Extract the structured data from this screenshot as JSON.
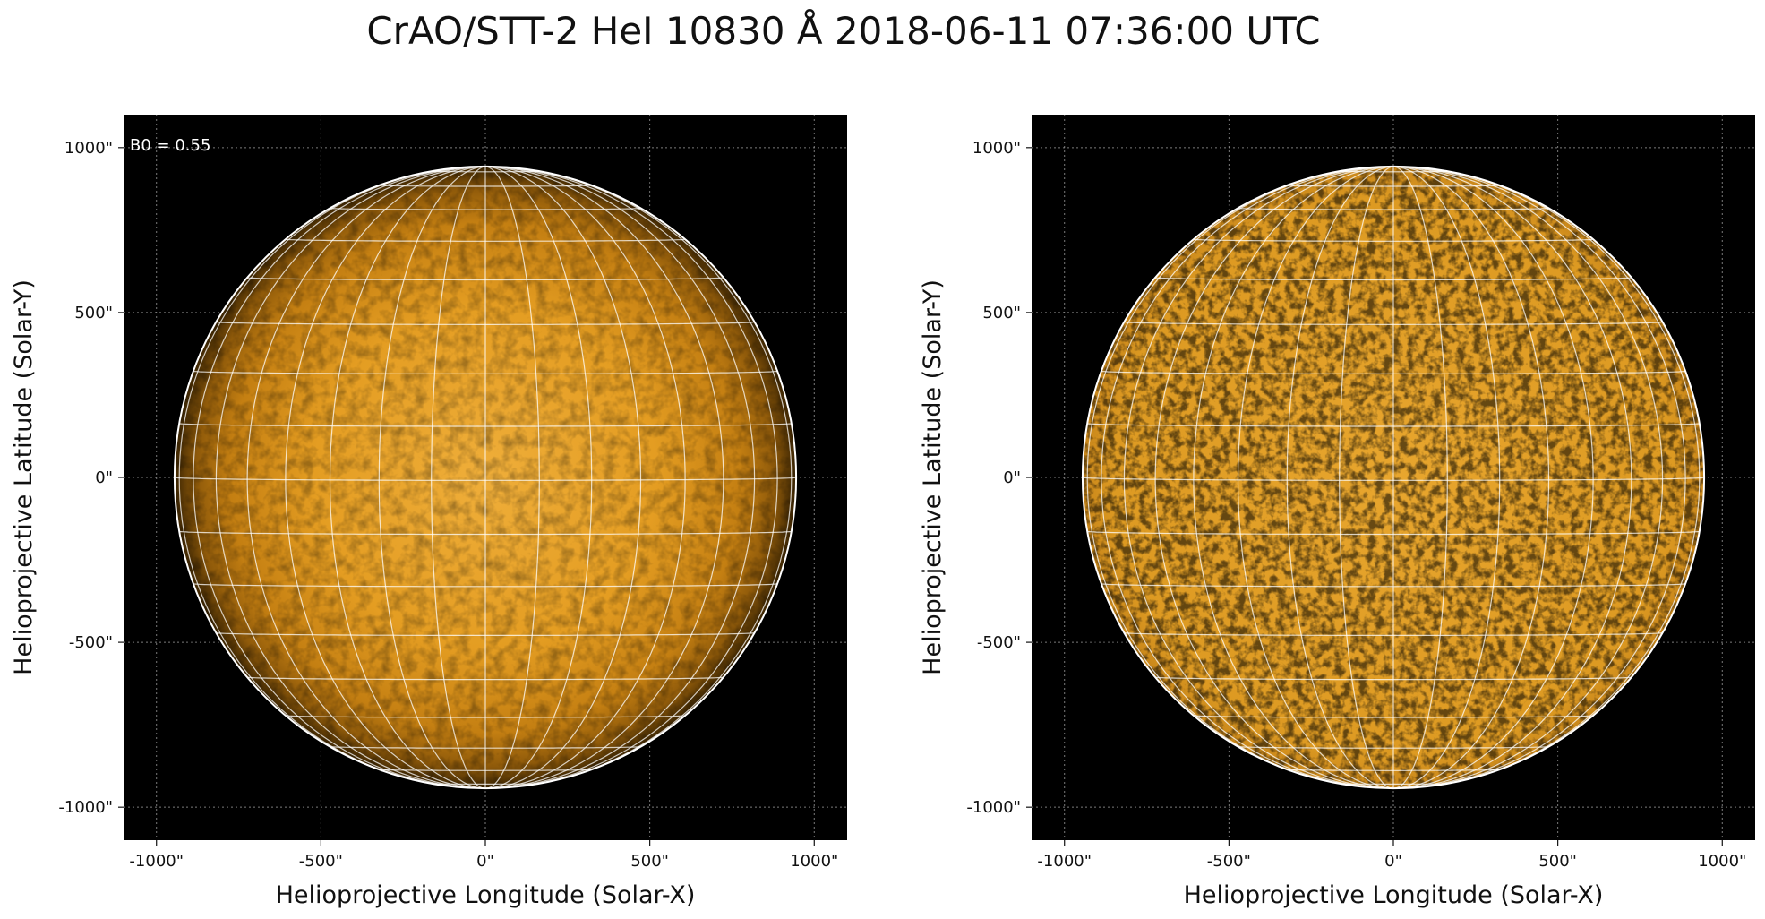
{
  "figure": {
    "title": "CrAO/STT-2 HeI 10830 Å 2018-06-11 07:36:00 UTC"
  },
  "chart_data": [
    {
      "type": "heatmap",
      "description_label": "B0 = 0.55",
      "xlabel": "Helioprojective Longitude (Solar-X)",
      "ylabel": "Helioprojective Latitude (Solar-Y)",
      "xlim": [
        -1100,
        1100
      ],
      "ylim": [
        -1100,
        1100
      ],
      "xticks": [
        -1000,
        -500,
        0,
        500,
        1000
      ],
      "yticks": [
        -1000,
        -500,
        0,
        500,
        1000
      ],
      "xtick_labels": [
        "-1000\"",
        "-500\"",
        "0\"",
        "500\"",
        "1000\""
      ],
      "ytick_labels": [
        "-1000\"",
        "-500\"",
        "0\"",
        "500\"",
        "1000\""
      ],
      "grid": true,
      "solar_radius_arcsec": 945,
      "b0_deg": 0.55,
      "heliographic_grid_spacing_deg": 10,
      "limb_darkening": true,
      "colormap": "orange-on-black"
    },
    {
      "type": "heatmap",
      "xlabel": "Helioprojective Longitude (Solar-X)",
      "ylabel": "Helioprojective Latitude (Solar-Y)",
      "xlim": [
        -1100,
        1100
      ],
      "ylim": [
        -1100,
        1100
      ],
      "xticks": [
        -1000,
        -500,
        0,
        500,
        1000
      ],
      "yticks": [
        -1000,
        -500,
        0,
        500,
        1000
      ],
      "xtick_labels": [
        "-1000\"",
        "-500\"",
        "0\"",
        "500\"",
        "1000\""
      ],
      "ytick_labels": [
        "-1000\"",
        "-500\"",
        "0\"",
        "500\"",
        "1000\""
      ],
      "grid": true,
      "solar_radius_arcsec": 945,
      "b0_deg": 0.55,
      "heliographic_grid_spacing_deg": 10,
      "limb_darkening": false,
      "colormap": "orange-on-black"
    }
  ],
  "colors": {
    "background": "#000000",
    "disk_center": "#e8a326",
    "disk_limb": "#7a4a08",
    "grid": "#ffffff",
    "limb_circle": "#ffffff"
  }
}
